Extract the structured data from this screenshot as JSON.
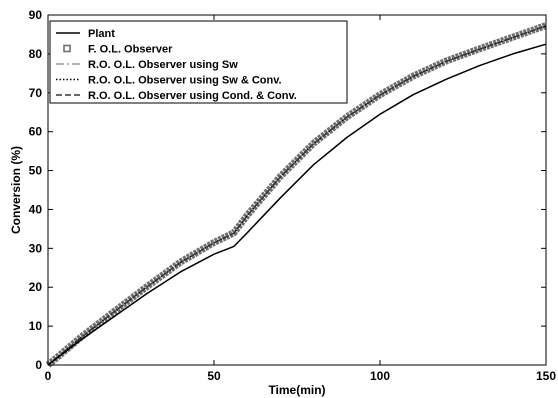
{
  "chart_data": {
    "type": "line",
    "xlabel": "Time(min)",
    "ylabel": "Conversion (%)",
    "xlim": [
      0,
      150
    ],
    "ylim": [
      0,
      90
    ],
    "x_ticks": [
      0,
      50,
      100,
      150
    ],
    "y_ticks": [
      0,
      10,
      20,
      30,
      40,
      50,
      60,
      70,
      80,
      90
    ],
    "grid": false,
    "legend_position": "top-left",
    "x": [
      0,
      10,
      20,
      30,
      40,
      50,
      56,
      60,
      70,
      80,
      90,
      100,
      110,
      120,
      130,
      140,
      150
    ],
    "series": [
      {
        "name": "Plant",
        "style": "solid",
        "color": "#000000",
        "values": [
          0,
          6.5,
          12.5,
          18.5,
          24,
          28.5,
          30.5,
          34,
          43,
          51.5,
          58.5,
          64.5,
          69.5,
          73.5,
          77,
          80,
          82.5
        ]
      },
      {
        "name": "F. O.L. Observer",
        "style": "square-markers",
        "color": "#6f6f6f",
        "values": [
          0,
          7.2,
          13.8,
          20.3,
          26.5,
          31.5,
          34,
          38.5,
          48.5,
          57,
          63.8,
          69.5,
          74.3,
          78.2,
          81.3,
          84.3,
          87.3
        ]
      },
      {
        "name": "R.O. O.L. Observer using Sw",
        "style": "dashdot",
        "color": "#9a9a9a",
        "values": [
          0,
          7.2,
          13.8,
          20.3,
          26.5,
          31.5,
          34,
          38.5,
          48.5,
          57,
          63.8,
          69.5,
          74.3,
          78.2,
          81.3,
          84.3,
          87.3
        ]
      },
      {
        "name": "R.O. O.L. Observer using Sw & Conv.",
        "style": "dotted",
        "color": "#000000",
        "values": [
          0,
          7.1,
          13.7,
          20.2,
          26.4,
          31.4,
          33.9,
          38.4,
          48.4,
          56.9,
          63.7,
          69.4,
          74.2,
          78.1,
          81.2,
          84.2,
          87.2
        ]
      },
      {
        "name": "R.O. O.L. Observer using Cond. & Conv.",
        "style": "dashed",
        "color": "#333333",
        "values": [
          0,
          7.1,
          13.7,
          20.2,
          26.4,
          31.4,
          33.9,
          38.4,
          48.4,
          56.9,
          63.7,
          69.4,
          74.2,
          78.1,
          81.2,
          84.2,
          87.2
        ]
      }
    ]
  }
}
